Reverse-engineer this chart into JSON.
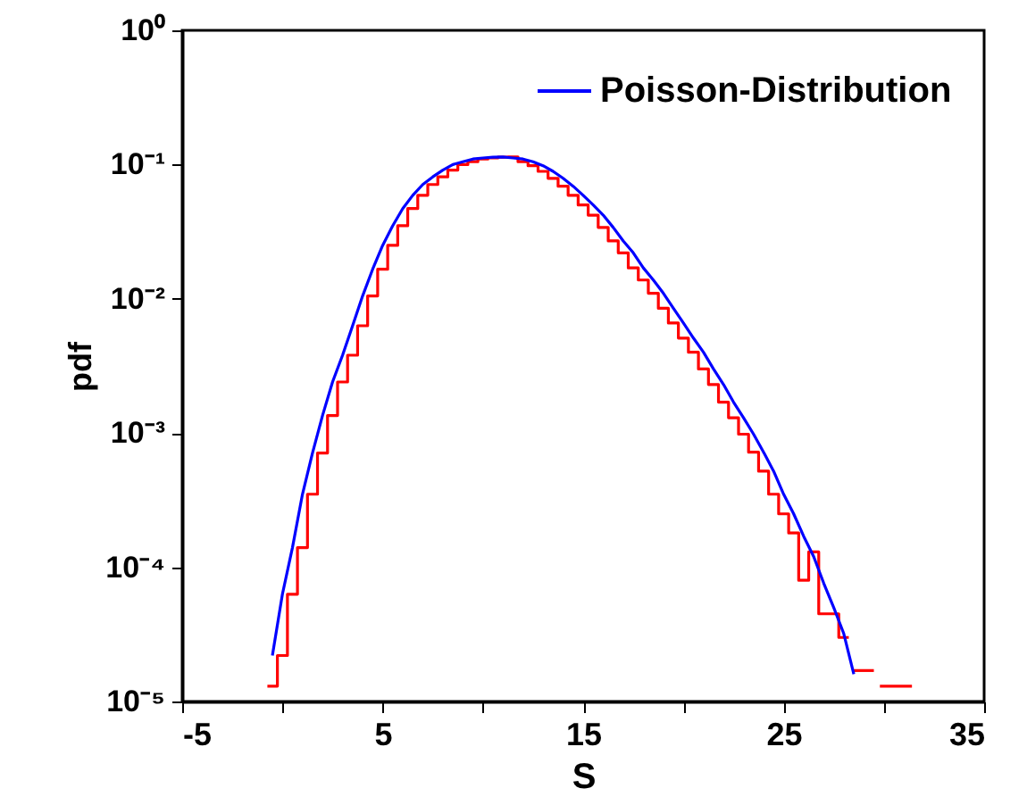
{
  "chart_data": {
    "type": "line",
    "xlabel": "S",
    "ylabel": "pdf",
    "log": "y",
    "grid": false,
    "legend": "top right",
    "marker": "none",
    "line_style": "solid",
    "xlim": [
      -5,
      35
    ],
    "xticks": [
      -5,
      {
        "value": 0,
        "label": null
      },
      5,
      {
        "value": 10,
        "label": null
      },
      15,
      {
        "value": 20,
        "label": null
      },
      25,
      {
        "value": 30,
        "label": null
      },
      35
    ],
    "ylim": [
      1e-05,
      1
    ],
    "yticks": [
      {
        "value": 1,
        "label": "10⁰"
      },
      {
        "value": 0.1,
        "label": "10⁻¹"
      },
      {
        "value": 0.01,
        "label": "10⁻²"
      },
      {
        "value": 0.001,
        "label": "10⁻³"
      },
      {
        "value": 0.0001,
        "label": "10⁻⁴"
      },
      {
        "value": 1e-05,
        "label": "10⁻⁵"
      }
    ],
    "series": [
      {
        "type": "step",
        "color": "#ff0000",
        "x": [
          -0.75,
          -0.25,
          0.25,
          0.75,
          1.25,
          1.75,
          2.25,
          2.75,
          3.25,
          3.75,
          4.25,
          4.75,
          5.25,
          5.75,
          6.25,
          6.75,
          7.25,
          7.75,
          8.25,
          8.75,
          9.25,
          9.75,
          10.25,
          10.75,
          11.25,
          11.75,
          12.25,
          12.75,
          13.25,
          13.75,
          14.25,
          14.75,
          15.25,
          15.75,
          16.25,
          16.75,
          17.25,
          17.75,
          18.25,
          18.75,
          19.25,
          19.75,
          20.25,
          20.75,
          21.25,
          21.75,
          22.25,
          22.75,
          23.25,
          23.75,
          24.25,
          24.75,
          25.25,
          25.75,
          26.25,
          26.75,
          27.25,
          27.75,
          28.25,
          28.3,
          28.5,
          29.5,
          29.6,
          29.8,
          31.4
        ],
        "values": [
          1.3e-05,
          2.2e-05,
          6.3e-05,
          0.00014,
          0.00035,
          0.00071,
          0.00135,
          0.0024,
          0.0038,
          0.0063,
          0.0105,
          0.0166,
          0.025,
          0.035,
          0.047,
          0.059,
          0.071,
          0.081,
          0.091,
          0.1,
          0.105,
          0.11,
          0.112,
          0.1135,
          0.114,
          0.105,
          0.098,
          0.089,
          0.079,
          0.069,
          0.059,
          0.05,
          0.042,
          0.034,
          0.027,
          0.022,
          0.017,
          0.0138,
          0.011,
          0.0085,
          0.0066,
          0.0051,
          0.004,
          0.003,
          0.0023,
          0.0017,
          0.0013,
          0.00098,
          0.00072,
          0.00052,
          0.00035,
          0.00025,
          0.00018,
          8e-05,
          0.00013,
          4.5e-05,
          4.5e-05,
          3e-05,
          3e-05,
          null,
          1.7e-05,
          1.7e-05,
          null,
          1.3e-05,
          1.3e-05
        ]
      },
      {
        "type": "line",
        "name": "Poisson-Distribution",
        "color": "#0000ff",
        "x": [
          -0.5,
          0,
          0.5,
          1,
          1.5,
          2,
          2.5,
          3,
          3.5,
          4,
          4.5,
          5,
          5.5,
          6,
          6.5,
          7,
          7.5,
          8,
          8.5,
          9,
          9.5,
          10,
          10.5,
          11,
          11.5,
          12,
          12.5,
          13,
          13.5,
          14,
          14.5,
          15,
          15.5,
          16,
          16.5,
          17,
          17.5,
          18,
          18.5,
          19,
          19.5,
          20,
          20.5,
          21,
          21.5,
          22,
          22.5,
          23,
          23.5,
          24,
          24.5,
          25,
          25.5,
          26,
          26.5,
          27,
          27.5,
          28,
          28.5
        ],
        "values": [
          2.2e-05,
          6.3e-05,
          0.00014,
          0.00035,
          0.00071,
          0.00135,
          0.0024,
          0.0038,
          0.0063,
          0.0105,
          0.0166,
          0.025,
          0.035,
          0.047,
          0.059,
          0.071,
          0.081,
          0.091,
          0.1,
          0.105,
          0.11,
          0.112,
          0.1135,
          0.114,
          0.112,
          0.11,
          0.105,
          0.098,
          0.089,
          0.079,
          0.069,
          0.059,
          0.05,
          0.042,
          0.034,
          0.027,
          0.022,
          0.017,
          0.0138,
          0.011,
          0.0085,
          0.0066,
          0.0051,
          0.004,
          0.003,
          0.0023,
          0.0017,
          0.0013,
          0.00098,
          0.00072,
          0.00052,
          0.00035,
          0.00025,
          0.00017,
          0.00012,
          7.6e-05,
          5e-05,
          3.2e-05,
          1.6e-05
        ]
      }
    ]
  }
}
